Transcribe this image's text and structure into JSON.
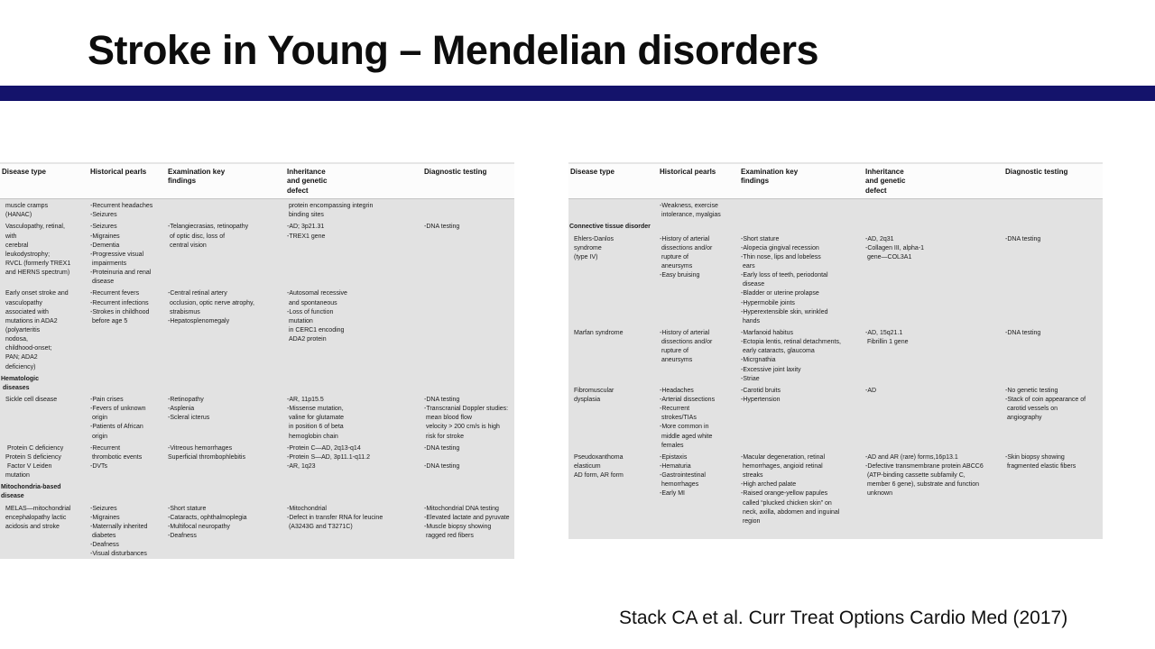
{
  "slide": {
    "title": "Stroke in Young – Mendelian disorders",
    "citation": "Stack CA et al. Curr Treat Options Cardio Med (2017)",
    "accent_color": "#14136b",
    "table_body_color": "#e2e2e2"
  },
  "tables": [
    {
      "name": "mendelian-disorders-table-part-1",
      "headers": [
        "Disease type",
        "Historical pearls",
        "Examination key\nfindings",
        "Inheritance\nand genetic\ndefect",
        "Diagnostic testing"
      ],
      "rows": [
        {
          "section": false,
          "cells": [
            "muscle cramps\n(HANAC)",
            "-Recurrent headaches\n-Seizures",
            "",
            " protein encompassing integrin\n binding sites",
            ""
          ]
        },
        {
          "section": false,
          "cells": [
            "Vasculopathy, retinal,\nwith\ncerebral\nleukodystrophy;\nRVCL (formerly TREX1\nand HERNS spectrum)",
            "-Seizures\n-Migraines\n-Dementia\n-Progressive visual\n impairments\n-Proteinuria and renal\n disease",
            "-Telangiecrasias, retinopathy\n of optic disc, loss of\n central vision",
            "-AD; 3p21.31\n-TREX1 gene",
            "-DNA testing"
          ]
        },
        {
          "section": false,
          "cells": [
            "Early onset stroke and\nvasculopathy\nassociated with\nmutations in ADA2\n(polyarteritis\nnodosa,\nchildhood-onset;\nPAN; ADA2\ndeficiency)",
            "-Recurrent fevers\n-Recurrent infections\n-Strokes in childhood\n before age 5",
            "-Central retinal artery\n occlusion, optic nerve atrophy,\n strabismus\n-Hepatosplenomegaly",
            "-Autosomal recessive\n and spontaneous\n-Loss of function\n mutation\n in CERC1 encoding\n ADA2 protein",
            ""
          ]
        },
        {
          "section": true,
          "cells": [
            "Hematologic\n diseases",
            "",
            "",
            "",
            ""
          ]
        },
        {
          "section": false,
          "cells": [
            "Sickle cell disease",
            "-Pain crises\n-Fevers of unknown\n origin\n-Patients of African\n origin",
            "-Retinopathy\n-Asplenia\n-Scleral icterus",
            "-AR, 11p15.5\n-Missense mutation,\n valine for glutamate\n in position 6 of beta\n hemoglobin chain",
            "-DNA testing\n-Transcranial Doppler studies:\n mean blood flow\n velocity > 200 cm/s is high\n risk for stroke"
          ]
        },
        {
          "section": false,
          "cells": [
            " Protein C deficiency\nProtein S deficiency\n Factor V Leiden\nmutation",
            "-Recurrent\n thrombotic events\n-DVTs",
            "-Vitreous hemorrhages\nSuperficial thrombophlebitis",
            "-Protein C—AD, 2q13-q14\n-Protein S—AD, 3p11.1-q11.2\n-AR, 1q23",
            "-DNA testing\n\n-DNA testing"
          ]
        },
        {
          "section": true,
          "cells": [
            "Mitochondria-based disease",
            "",
            "",
            "",
            ""
          ]
        },
        {
          "section": false,
          "cells": [
            "MELAS—mitochondrial\nencephalopathy lactic\nacidosis and stroke",
            "-Seizures\n-Migraines\n-Maternally inherited\n diabetes\n-Deafness\n-Visual disturbances",
            "-Short stature\n-Cataracts, ophthalmoplegia\n-Multifocal neuropathy\n-Deafness",
            "-Mitochondrial\n-Defect in transfer RNA for leucine\n (A3243G and T3271C)",
            "-Mitochondrial DNA testing\n-Elevated lactate and pyruvate\n-Muscle biopsy showing\n ragged red fibers"
          ]
        }
      ]
    },
    {
      "name": "mendelian-disorders-table-part-2",
      "headers": [
        "Disease type",
        "Historical pearls",
        "Examination key\nfindings",
        "Inheritance\nand genetic\ndefect",
        "Diagnostic testing"
      ],
      "rows": [
        {
          "section": false,
          "cells": [
            "",
            "-Weakness, exercise\n intolerance, myalgias",
            "",
            "",
            ""
          ]
        },
        {
          "section": true,
          "cells": [
            "Connective tissue disorder",
            "",
            "",
            "",
            ""
          ]
        },
        {
          "section": false,
          "cells": [
            "Ehlers-Danlos\nsyndrome\n(type IV)",
            "-History of arterial\n dissections and/or\n rupture of\n aneursyms\n-Easy bruising",
            "-Short stature\n-Alopecia gingival recession\n-Thin nose, lips and lobeless\n ears\n-Early loss of teeth, periodontal\n disease\n-Bladder or uterine prolapse\n-Hypermobile joints\n-Hyperextensible skin, wrinkled\n hands",
            "-AD, 2q31\n-Collagen III, alpha-1\n gene—COL3A1",
            "-DNA testing"
          ]
        },
        {
          "section": false,
          "cells": [
            "Marfan syndrome",
            "-History of arterial\n dissections and/or\n rupture of\n aneursyms",
            "-Marfanoid habitus\n-Ectopia lentis, retinal detachments,\n early cataracts, glaucoma\n-Micrgnathia\n-Excessive joint laxity\n-Striae",
            "-AD, 15q21.1\n Fibrillin 1 gene",
            "-DNA testing"
          ]
        },
        {
          "section": false,
          "cells": [
            "Fibromuscular\ndysplasia",
            "-Headaches\n-Arterial dissections\n-Recurrent\n strokes/TIAs\n-More common in\n middle aged white\n females",
            "-Carotid bruits\n-Hypertension",
            "-AD",
            "-No genetic testing\n-Stack of coin appearance of\n carotid vessels on\n angiography"
          ]
        },
        {
          "section": false,
          "cells": [
            "Pseudoxanthoma\nelasticum\nAD form, AR form",
            "-Epistaxis\n-Hematuria\n-Gastrointestinal\n hemorrhages\n-Early MI",
            "-Macular degeneration, retinal\n hemorrhages, angioid retinal\n streaks\n-High arched palate\n-Raised orange-yellow papules\n called “plucked chicken skin” on\n neck, axilla, abdomen and inguinal\n region",
            "-AD and AR (rare) forms,16p13.1\n-Defective transmembrane protein ABCC6\n (ATP-binding cassette subfamily C,\n member 6 gene), substrate and function\n unknown",
            "-Skin biopsy showing\n fragmented elastic fibers"
          ]
        }
      ]
    }
  ]
}
